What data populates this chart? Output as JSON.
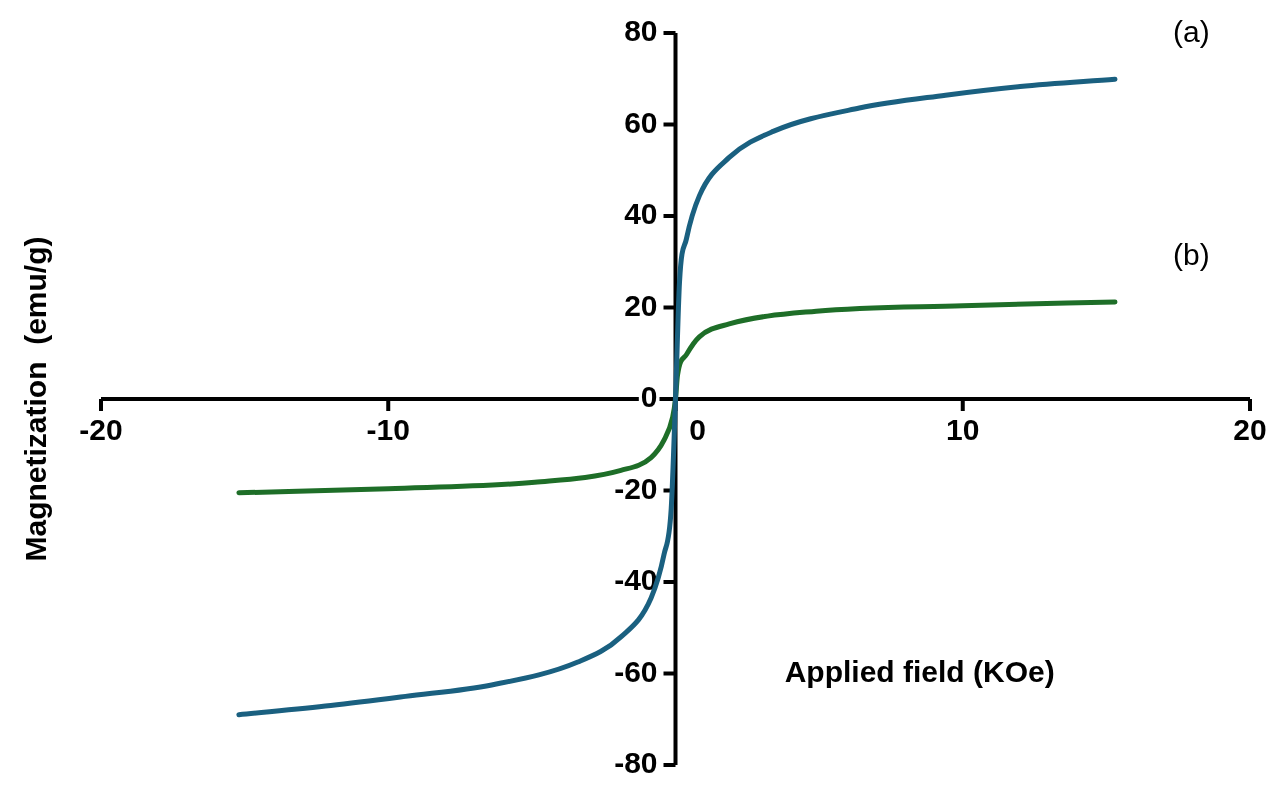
{
  "chart_data": {
    "type": "line",
    "xlabel": "Applied field (KOe)",
    "ylabel": "Magnetization  (emu/g)",
    "xlim": [
      -20,
      20
    ],
    "ylim": [
      -80,
      80
    ],
    "xticks": [
      -20,
      -10,
      0,
      10,
      20
    ],
    "yticks": [
      -80,
      -60,
      -40,
      -20,
      0,
      20,
      40,
      60,
      80
    ],
    "grid": false,
    "legend": false,
    "marker": "none",
    "line_style": "solid",
    "series": [
      {
        "name": "(a)",
        "color": "#1a6080",
        "x": [
          -15.2,
          -12,
          -9.4,
          -6.4,
          -3.4,
          -1.9,
          -0.85,
          -0.4,
          -0.15,
          0,
          0.14,
          0.38,
          0.83,
          1.87,
          3.4,
          6.4,
          9.4,
          12,
          15.3
        ],
        "values": [
          -69,
          -67,
          -65,
          -62.5,
          -57.5,
          -52,
          -43.5,
          -34,
          -24,
          0,
          25.6,
          35,
          44.4,
          52.8,
          58.5,
          63.6,
          66.4,
          68.3,
          69.9
        ]
      },
      {
        "name": "(b)",
        "color": "#1e6e28",
        "x": [
          -15.2,
          -10,
          -4.9,
          -1.9,
          -0.85,
          -0.4,
          -0.1,
          0,
          0.07,
          0.38,
          0.83,
          1.87,
          4.9,
          10,
          15.3
        ],
        "values": [
          -20.5,
          -19.6,
          -18.2,
          -15.6,
          -12.8,
          -9,
          -4,
          0,
          5.2,
          9.7,
          13.6,
          16.4,
          19.2,
          20.4,
          21.2
        ]
      }
    ]
  }
}
